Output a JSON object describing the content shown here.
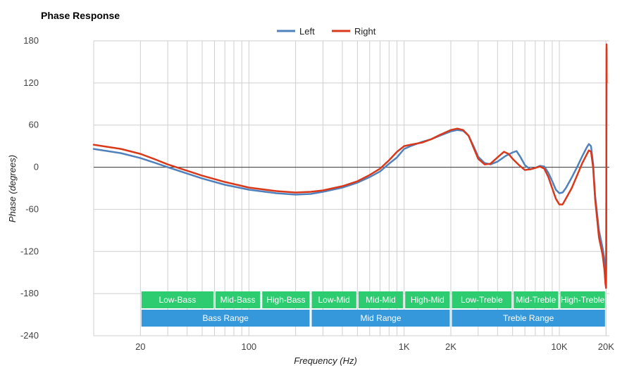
{
  "chart_data": {
    "type": "line",
    "title": "Phase Response",
    "xlabel": "Frequency (Hz)",
    "ylabel": "Phase (degrees)",
    "x_scale": "log",
    "xlim": [
      10,
      21000
    ],
    "ylim": [
      -240,
      180
    ],
    "y_ticks": [
      180,
      120,
      60,
      0,
      -60,
      -120,
      -180,
      -240
    ],
    "x_ticks": [
      {
        "value": 20,
        "label": "20"
      },
      {
        "value": 100,
        "label": "100"
      },
      {
        "value": 1000,
        "label": "1K"
      },
      {
        "value": 2000,
        "label": "2K"
      },
      {
        "value": 10000,
        "label": "10K"
      },
      {
        "value": 20000,
        "label": "20K"
      }
    ],
    "grid": true,
    "legend_position": "top-center",
    "series": [
      {
        "name": "Left",
        "color": "#4f81bd",
        "points": [
          [
            10,
            26
          ],
          [
            15,
            20
          ],
          [
            20,
            13
          ],
          [
            25,
            6
          ],
          [
            30,
            0
          ],
          [
            40,
            -9
          ],
          [
            50,
            -16
          ],
          [
            70,
            -25
          ],
          [
            100,
            -32
          ],
          [
            150,
            -37
          ],
          [
            200,
            -39
          ],
          [
            250,
            -38
          ],
          [
            300,
            -35
          ],
          [
            400,
            -29
          ],
          [
            500,
            -22
          ],
          [
            600,
            -14
          ],
          [
            700,
            -6
          ],
          [
            800,
            5
          ],
          [
            900,
            14
          ],
          [
            1000,
            26
          ],
          [
            1100,
            30
          ],
          [
            1300,
            36
          ],
          [
            1500,
            40
          ],
          [
            1700,
            45
          ],
          [
            2000,
            51
          ],
          [
            2200,
            53
          ],
          [
            2400,
            52
          ],
          [
            2600,
            45
          ],
          [
            2800,
            30
          ],
          [
            3000,
            15
          ],
          [
            3300,
            6
          ],
          [
            3600,
            4
          ],
          [
            4000,
            8
          ],
          [
            4500,
            16
          ],
          [
            5000,
            21
          ],
          [
            5300,
            23
          ],
          [
            5600,
            15
          ],
          [
            6000,
            3
          ],
          [
            6500,
            -3
          ],
          [
            7000,
            -1
          ],
          [
            7500,
            2
          ],
          [
            8000,
            1
          ],
          [
            8500,
            -8
          ],
          [
            9000,
            -20
          ],
          [
            9500,
            -32
          ],
          [
            10000,
            -37
          ],
          [
            10500,
            -36
          ],
          [
            11000,
            -30
          ],
          [
            12000,
            -15
          ],
          [
            13000,
            0
          ],
          [
            14000,
            15
          ],
          [
            15000,
            28
          ],
          [
            15500,
            33
          ],
          [
            16000,
            30
          ],
          [
            16500,
            5
          ],
          [
            17000,
            -40
          ],
          [
            18000,
            -90
          ],
          [
            19000,
            -115
          ],
          [
            19500,
            -130
          ],
          [
            19800,
            -150
          ],
          [
            20000,
            -170
          ],
          [
            20050,
            -130
          ],
          [
            20100,
            0
          ],
          [
            20150,
            170
          ],
          [
            20200,
            150
          ]
        ]
      },
      {
        "name": "Right",
        "color": "#d9391a",
        "points": [
          [
            10,
            32
          ],
          [
            15,
            26
          ],
          [
            20,
            19
          ],
          [
            25,
            11
          ],
          [
            30,
            4
          ],
          [
            40,
            -5
          ],
          [
            50,
            -12
          ],
          [
            70,
            -21
          ],
          [
            100,
            -29
          ],
          [
            150,
            -34
          ],
          [
            200,
            -36
          ],
          [
            250,
            -35
          ],
          [
            300,
            -33
          ],
          [
            400,
            -27
          ],
          [
            500,
            -20
          ],
          [
            600,
            -11
          ],
          [
            700,
            -2
          ],
          [
            800,
            10
          ],
          [
            900,
            22
          ],
          [
            1000,
            30
          ],
          [
            1100,
            32
          ],
          [
            1300,
            35
          ],
          [
            1500,
            40
          ],
          [
            1700,
            46
          ],
          [
            2000,
            53
          ],
          [
            2200,
            55
          ],
          [
            2400,
            53
          ],
          [
            2600,
            45
          ],
          [
            2800,
            28
          ],
          [
            3000,
            12
          ],
          [
            3300,
            4
          ],
          [
            3600,
            5
          ],
          [
            4000,
            14
          ],
          [
            4400,
            22
          ],
          [
            4700,
            19
          ],
          [
            5000,
            12
          ],
          [
            5500,
            3
          ],
          [
            6000,
            -4
          ],
          [
            6500,
            -3
          ],
          [
            7000,
            -1
          ],
          [
            7500,
            1
          ],
          [
            8000,
            -2
          ],
          [
            8500,
            -14
          ],
          [
            9000,
            -30
          ],
          [
            9500,
            -45
          ],
          [
            10000,
            -53
          ],
          [
            10500,
            -53
          ],
          [
            11000,
            -45
          ],
          [
            12000,
            -30
          ],
          [
            13000,
            -12
          ],
          [
            14000,
            5
          ],
          [
            15000,
            18
          ],
          [
            15500,
            24
          ],
          [
            16000,
            22
          ],
          [
            16500,
            0
          ],
          [
            17000,
            -45
          ],
          [
            18000,
            -100
          ],
          [
            19000,
            -125
          ],
          [
            19500,
            -145
          ],
          [
            19800,
            -165
          ],
          [
            20000,
            -172
          ],
          [
            20050,
            -100
          ],
          [
            20100,
            60
          ],
          [
            20150,
            175
          ],
          [
            20200,
            120
          ]
        ]
      }
    ],
    "bands": {
      "row1": [
        {
          "label": "Low-Bass",
          "from": 20,
          "to": 60
        },
        {
          "label": "Mid-Bass",
          "from": 60,
          "to": 120
        },
        {
          "label": "High-Bass",
          "from": 120,
          "to": 250
        },
        {
          "label": "Low-Mid",
          "from": 250,
          "to": 500
        },
        {
          "label": "Mid-Mid",
          "from": 500,
          "to": 1000
        },
        {
          "label": "High-Mid",
          "from": 1000,
          "to": 2000
        },
        {
          "label": "Low-Treble",
          "from": 2000,
          "to": 5000
        },
        {
          "label": "Mid-Treble",
          "from": 5000,
          "to": 10000
        },
        {
          "label": "High-Treble",
          "from": 10000,
          "to": 20000
        }
      ],
      "row2": [
        {
          "label": "Bass Range",
          "from": 20,
          "to": 250
        },
        {
          "label": "Mid Range",
          "from": 250,
          "to": 2000
        },
        {
          "label": "Treble Range",
          "from": 2000,
          "to": 20000
        }
      ],
      "row1_color": "#2ecc71",
      "row2_color": "#3498db"
    }
  }
}
